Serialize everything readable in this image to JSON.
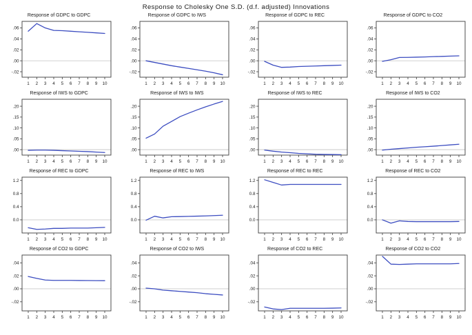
{
  "main_title": "Response to Cholesky One S.D. (d.f. adjusted) Innovations",
  "style": {
    "line_color": "#3b4cc0",
    "zero_line_color": "#c9c9c9",
    "border_color": "#3a3a3a",
    "tick_color": "#3a3a3a"
  },
  "chart_data": [
    {
      "type": "line",
      "title": "Response of GDPC to GDPC",
      "x": [
        1,
        2,
        3,
        4,
        5,
        6,
        7,
        8,
        9,
        10
      ],
      "values": [
        0.054,
        0.068,
        0.06,
        0.0555,
        0.055,
        0.054,
        0.053,
        0.052,
        0.051,
        0.05
      ],
      "yticks": [
        0.06,
        0.04,
        0.02,
        0.0,
        -0.02
      ],
      "ytick_labels": [
        ".06",
        ".04",
        ".02",
        ".00",
        "-.02"
      ],
      "ylim": [
        -0.03,
        0.072
      ],
      "grid": "zero-line-only",
      "legend": "none"
    },
    {
      "type": "line",
      "title": "Response of GDPC to IWS",
      "x": [
        1,
        2,
        3,
        4,
        5,
        6,
        7,
        8,
        9,
        10
      ],
      "values": [
        0.0,
        -0.003,
        -0.006,
        -0.009,
        -0.0115,
        -0.014,
        -0.0165,
        -0.019,
        -0.022,
        -0.0255
      ],
      "yticks": [
        0.06,
        0.04,
        0.02,
        0.0,
        -0.02
      ],
      "ytick_labels": [
        ".06",
        ".04",
        ".02",
        ".00",
        "-.02"
      ],
      "ylim": [
        -0.03,
        0.072
      ],
      "grid": "zero-line-only",
      "legend": "none"
    },
    {
      "type": "line",
      "title": "Response of GDPC to REC",
      "x": [
        1,
        2,
        3,
        4,
        5,
        6,
        7,
        8,
        9,
        10
      ],
      "values": [
        -0.001,
        -0.008,
        -0.012,
        -0.0115,
        -0.0105,
        -0.01,
        -0.0095,
        -0.009,
        -0.0085,
        -0.008
      ],
      "yticks": [
        0.06,
        0.04,
        0.02,
        0.0,
        -0.02
      ],
      "ytick_labels": [
        ".06",
        ".04",
        ".02",
        ".00",
        "-.02"
      ],
      "ylim": [
        -0.03,
        0.072
      ],
      "grid": "zero-line-only",
      "legend": "none"
    },
    {
      "type": "line",
      "title": "Response of GDPC to CO2",
      "x": [
        1,
        2,
        3,
        4,
        5,
        6,
        7,
        8,
        9,
        10
      ],
      "values": [
        -0.001,
        0.002,
        0.006,
        0.0062,
        0.0066,
        0.007,
        0.0076,
        0.008,
        0.0086,
        0.009
      ],
      "yticks": [
        0.06,
        0.04,
        0.02,
        0.0,
        -0.02
      ],
      "ytick_labels": [
        ".06",
        ".04",
        ".02",
        ".00",
        "-.02"
      ],
      "ylim": [
        -0.03,
        0.072
      ],
      "grid": "zero-line-only",
      "legend": "none"
    },
    {
      "type": "line",
      "title": "Response of IWS to GDPC",
      "x": [
        1,
        2,
        3,
        4,
        5,
        6,
        7,
        8,
        9,
        10
      ],
      "values": [
        -0.003,
        -0.002,
        -0.002,
        -0.003,
        -0.0045,
        -0.006,
        -0.0075,
        -0.009,
        -0.011,
        -0.013
      ],
      "yticks": [
        0.2,
        0.15,
        0.1,
        0.05,
        0.0
      ],
      "ytick_labels": [
        ".20",
        ".15",
        ".10",
        ".05",
        ".00"
      ],
      "ylim": [
        -0.025,
        0.232
      ],
      "grid": "zero-line-only",
      "legend": "none"
    },
    {
      "type": "line",
      "title": "Response of IWS to IWS",
      "x": [
        1,
        2,
        3,
        4,
        5,
        6,
        7,
        8,
        9,
        10
      ],
      "values": [
        0.053,
        0.072,
        0.108,
        0.13,
        0.152,
        0.168,
        0.183,
        0.197,
        0.21,
        0.222
      ],
      "yticks": [
        0.2,
        0.15,
        0.1,
        0.05,
        0.0
      ],
      "ytick_labels": [
        ".20",
        ".15",
        ".10",
        ".05",
        ".00"
      ],
      "ylim": [
        -0.025,
        0.232
      ],
      "grid": "zero-line-only",
      "legend": "none"
    },
    {
      "type": "line",
      "title": "Response of IWS to REC",
      "x": [
        1,
        2,
        3,
        4,
        5,
        6,
        7,
        8,
        9,
        10
      ],
      "values": [
        -0.002,
        -0.007,
        -0.011,
        -0.014,
        -0.017,
        -0.019,
        -0.021,
        -0.022,
        -0.0225,
        -0.023
      ],
      "yticks": [
        0.2,
        0.15,
        0.1,
        0.05,
        0.0
      ],
      "ytick_labels": [
        ".20",
        ".15",
        ".10",
        ".05",
        ".00"
      ],
      "ylim": [
        -0.025,
        0.232
      ],
      "grid": "zero-line-only",
      "legend": "none"
    },
    {
      "type": "line",
      "title": "Response of IWS to CO2",
      "x": [
        1,
        2,
        3,
        4,
        5,
        6,
        7,
        8,
        9,
        10
      ],
      "values": [
        -0.002,
        0.002,
        0.005,
        0.008,
        0.011,
        0.0135,
        0.016,
        0.019,
        0.022,
        0.025
      ],
      "yticks": [
        0.2,
        0.15,
        0.1,
        0.05,
        0.0
      ],
      "ytick_labels": [
        ".20",
        ".15",
        ".10",
        ".05",
        ".00"
      ],
      "ylim": [
        -0.025,
        0.232
      ],
      "grid": "zero-line-only",
      "legend": "none"
    },
    {
      "type": "line",
      "title": "Response of REC to GDPC",
      "x": [
        1,
        2,
        3,
        4,
        5,
        6,
        7,
        8,
        9,
        10
      ],
      "values": [
        -0.24,
        -0.29,
        -0.28,
        -0.26,
        -0.26,
        -0.25,
        -0.25,
        -0.25,
        -0.24,
        -0.23
      ],
      "yticks": [
        1.2,
        0.8,
        0.4,
        0.0
      ],
      "ytick_labels": [
        "1.2",
        "0.8",
        "0.4",
        "0.0"
      ],
      "ylim": [
        -0.4,
        1.3
      ],
      "grid": "zero-line-only",
      "legend": "none"
    },
    {
      "type": "line",
      "title": "Response of REC to IWS",
      "x": [
        1,
        2,
        3,
        4,
        5,
        6,
        7,
        8,
        9,
        10
      ],
      "values": [
        -0.01,
        0.11,
        0.06,
        0.095,
        0.1,
        0.107,
        0.113,
        0.12,
        0.13,
        0.14
      ],
      "yticks": [
        1.2,
        0.8,
        0.4,
        0.0
      ],
      "ytick_labels": [
        "1.2",
        "0.8",
        "0.4",
        "0.0"
      ],
      "ylim": [
        -0.4,
        1.3
      ],
      "grid": "zero-line-only",
      "legend": "none"
    },
    {
      "type": "line",
      "title": "Response of REC to REC",
      "x": [
        1,
        2,
        3,
        4,
        5,
        6,
        7,
        8,
        9,
        10
      ],
      "values": [
        1.22,
        1.14,
        1.06,
        1.08,
        1.08,
        1.08,
        1.08,
        1.08,
        1.08,
        1.08
      ],
      "yticks": [
        1.2,
        0.8,
        0.4,
        0.0
      ],
      "ytick_labels": [
        "1.2",
        "0.8",
        "0.4",
        "0.0"
      ],
      "ylim": [
        -0.4,
        1.3
      ],
      "grid": "zero-line-only",
      "legend": "none"
    },
    {
      "type": "line",
      "title": "Response of REC to CO2",
      "x": [
        1,
        2,
        3,
        4,
        5,
        6,
        7,
        8,
        9,
        10
      ],
      "values": [
        0.0,
        -0.1,
        -0.03,
        -0.05,
        -0.055,
        -0.055,
        -0.055,
        -0.055,
        -0.055,
        -0.05
      ],
      "yticks": [
        1.2,
        0.8,
        0.4,
        0.0
      ],
      "ytick_labels": [
        "1.2",
        "0.8",
        "0.4",
        "0.0"
      ],
      "ylim": [
        -0.4,
        1.3
      ],
      "grid": "zero-line-only",
      "legend": "none"
    },
    {
      "type": "line",
      "title": "Response of CO2 to GDPC",
      "x": [
        1,
        2,
        3,
        4,
        5,
        6,
        7,
        8,
        9,
        10
      ],
      "values": [
        0.019,
        0.016,
        0.0135,
        0.013,
        0.013,
        0.013,
        0.0128,
        0.0127,
        0.0126,
        0.0125
      ],
      "yticks": [
        0.04,
        0.02,
        0.0,
        -0.02
      ],
      "ytick_labels": [
        ".04",
        ".02",
        ".00",
        "-.02"
      ],
      "ylim": [
        -0.034,
        0.052
      ],
      "grid": "zero-line-only",
      "legend": "none"
    },
    {
      "type": "line",
      "title": "Response of CO2 to IWS",
      "x": [
        1,
        2,
        3,
        4,
        5,
        6,
        7,
        8,
        9,
        10
      ],
      "values": [
        0.001,
        0.0,
        -0.002,
        -0.003,
        -0.004,
        -0.005,
        -0.006,
        -0.0075,
        -0.0085,
        -0.0095
      ],
      "yticks": [
        0.04,
        0.02,
        0.0,
        -0.02
      ],
      "ytick_labels": [
        ".04",
        ".02",
        ".00",
        "-.02"
      ],
      "ylim": [
        -0.034,
        0.052
      ],
      "grid": "zero-line-only",
      "legend": "none"
    },
    {
      "type": "line",
      "title": "Response of CO2 to REC",
      "x": [
        1,
        2,
        3,
        4,
        5,
        6,
        7,
        8,
        9,
        10
      ],
      "values": [
        -0.028,
        -0.031,
        -0.032,
        -0.03,
        -0.03,
        -0.03,
        -0.03,
        -0.03,
        -0.0298,
        -0.0295
      ],
      "yticks": [
        0.04,
        0.02,
        0.0,
        -0.02
      ],
      "ytick_labels": [
        ".04",
        ".02",
        ".00",
        "-.02"
      ],
      "ylim": [
        -0.034,
        0.052
      ],
      "grid": "zero-line-only",
      "legend": "none"
    },
    {
      "type": "line",
      "title": "Response of CO2 to CO2",
      "x": [
        1,
        2,
        3,
        4,
        5,
        6,
        7,
        8,
        9,
        10
      ],
      "values": [
        0.05,
        0.038,
        0.0375,
        0.038,
        0.0385,
        0.0385,
        0.0385,
        0.0385,
        0.0385,
        0.039
      ],
      "yticks": [
        0.04,
        0.02,
        0.0,
        -0.02
      ],
      "ytick_labels": [
        ".04",
        ".02",
        ".00",
        "-.02"
      ],
      "ylim": [
        -0.034,
        0.052
      ],
      "grid": "zero-line-only",
      "legend": "none"
    }
  ]
}
